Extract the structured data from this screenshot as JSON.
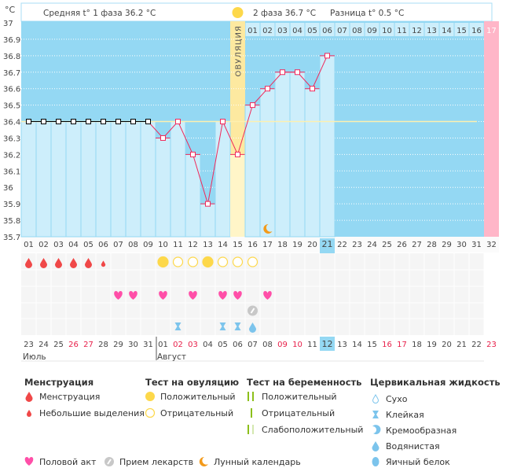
{
  "header": {
    "unit": "°C",
    "phase1": "Средняя t° 1 фаза 36.2 °C",
    "phase2": "2 фаза 36.7 °C",
    "difference": "Разница t° 0.5 °C",
    "ovulation_label": "ОВУЛЯЦИЯ",
    "luteal_days": [
      "01",
      "02",
      "03",
      "04",
      "05",
      "06",
      "07",
      "08",
      "09",
      "10",
      "11",
      "12",
      "13",
      "14",
      "15",
      "16",
      "17"
    ]
  },
  "colors": {
    "chart_bg": "#94d8f3",
    "bar": "#cdeefb",
    "line": "#f0285a",
    "phase1_marker": "#000000",
    "ovulation": "#fde9a0",
    "period_end": "#ffb6c8",
    "coverline": "#fdf0b0"
  },
  "chart_data": {
    "type": "line",
    "ylabel": "°C",
    "ylim": [
      35.7,
      37.0
    ],
    "yticks": [
      "37",
      "36.9",
      "36.8",
      "36.7",
      "36.6",
      "36.5",
      "36.4",
      "36.3",
      "36.2",
      "36.1",
      "36",
      "35.9",
      "35.8",
      "35.7"
    ],
    "grid": true,
    "cycle_days": [
      "01",
      "02",
      "03",
      "04",
      "05",
      "06",
      "07",
      "08",
      "09",
      "10",
      "11",
      "12",
      "13",
      "14",
      "15",
      "16",
      "17",
      "18",
      "19",
      "20",
      "21",
      "22",
      "23",
      "24",
      "25",
      "26",
      "27",
      "28",
      "29",
      "30",
      "31",
      "32"
    ],
    "temperatures": [
      36.4,
      36.4,
      36.4,
      36.4,
      36.4,
      36.4,
      36.4,
      36.4,
      36.4,
      36.3,
      36.4,
      36.2,
      35.9,
      36.4,
      36.2,
      36.5,
      36.6,
      36.7,
      36.7,
      36.6,
      36.8
    ],
    "coverline": 36.4,
    "ovulation_day": 15,
    "current_day": 21
  },
  "calendar": {
    "dates": [
      "23",
      "24",
      "25",
      "26",
      "27",
      "28",
      "29",
      "30",
      "31",
      "01",
      "02",
      "03",
      "04",
      "05",
      "06",
      "07",
      "08",
      "09",
      "10",
      "11",
      "12",
      "13",
      "14",
      "15",
      "16",
      "17",
      "18",
      "19",
      "20",
      "21",
      "22",
      "23"
    ],
    "red_dates": [
      4,
      5,
      11,
      12,
      18,
      19,
      25,
      26,
      32
    ],
    "months": [
      {
        "label": "Июль",
        "start": 1
      },
      {
        "label": "Август",
        "start": 10
      }
    ]
  },
  "symbols": {
    "menstruation": {
      "1": "heavy",
      "2": "heavy",
      "3": "heavy",
      "4": "heavy",
      "5": "heavy",
      "6": "light"
    },
    "ovulation_test": {
      "10": "positive",
      "11": "negative",
      "12": "negative",
      "13": "positive",
      "14": "negative",
      "15": "negative",
      "16": "negative"
    },
    "intercourse": [
      7,
      8,
      10,
      12,
      14,
      15,
      17
    ],
    "medication": [
      16
    ],
    "cervical": {
      "11": "sticky",
      "14": "sticky",
      "15": "sticky",
      "16": "watery"
    },
    "moon": [
      17
    ]
  },
  "legend": {
    "menstruation": {
      "title": "Менструация",
      "items": [
        "Менструация",
        "Небольшие выделения"
      ]
    },
    "ovulation_test": {
      "title": "Тест на овуляцию",
      "items": [
        "Положительный",
        "Отрицательный"
      ]
    },
    "pregnancy_test": {
      "title": "Тест на беременность",
      "items": [
        "Положительный",
        "Отрицательный",
        "Слабоположительный"
      ]
    },
    "cervical": {
      "title": "Цервикальная жидкость",
      "items": [
        "Сухо",
        "Клейкая",
        "Кремообразная",
        "Водянистая",
        "Яичный белок"
      ]
    },
    "other": [
      "Половой акт",
      "Прием лекарств",
      "Лунный календарь"
    ]
  }
}
